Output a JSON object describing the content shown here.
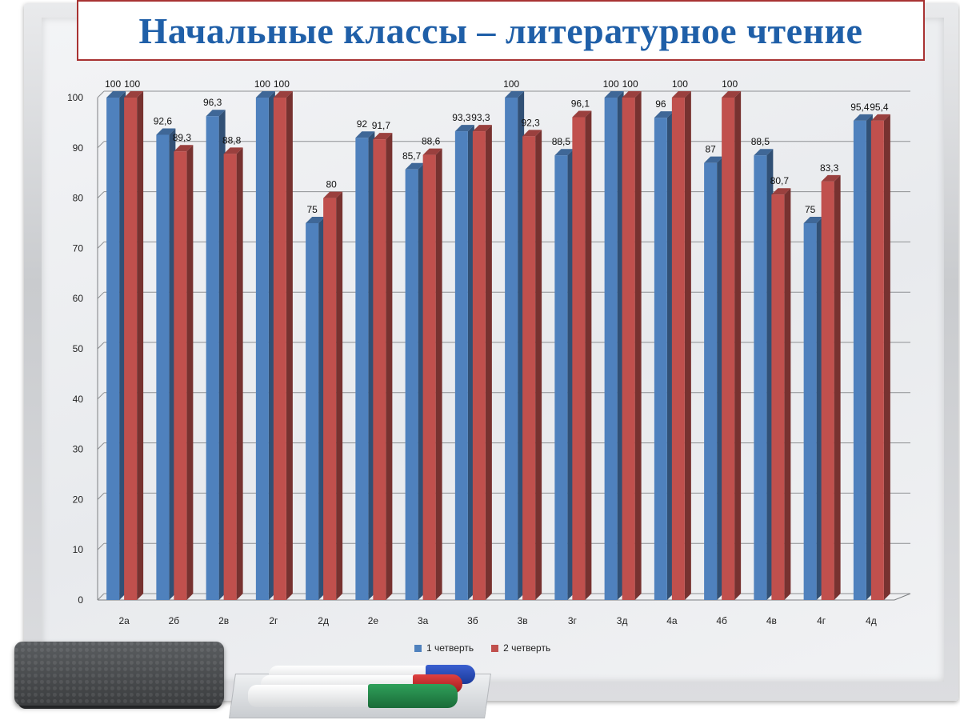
{
  "title": "Начальные классы – литературное чтение",
  "legend": {
    "series1": "1 четверть",
    "series2": "2 четверть"
  },
  "colors": {
    "series1": "#4f81bd",
    "series2": "#c0504d",
    "title": "#1f5fa8",
    "title_border": "#a83232"
  },
  "chart_data": {
    "type": "bar",
    "categories": [
      "2а",
      "2б",
      "2в",
      "2г",
      "2д",
      "2е",
      "3а",
      "3б",
      "3в",
      "3г",
      "3д",
      "4а",
      "4б",
      "4в",
      "4г",
      "4д"
    ],
    "series": [
      {
        "name": "1 четверть",
        "values": [
          100,
          92.6,
          96.3,
          100,
          75,
          92,
          85.7,
          93.3,
          100,
          88.5,
          100,
          96,
          87,
          88.5,
          75,
          95.4
        ]
      },
      {
        "name": "2 четверть",
        "values": [
          100,
          89.3,
          88.8,
          100,
          80,
          91.7,
          88.6,
          93.3,
          92.3,
          96.1,
          100,
          100,
          100,
          80.7,
          83.3,
          95.4
        ]
      }
    ],
    "data_labels": {
      "series1": [
        "100",
        "92,6",
        "96,3",
        "100",
        "75",
        "92",
        "85,7",
        "93,3",
        "100",
        "88,5",
        "100",
        "96",
        "87",
        "88,5",
        "75",
        "95,4"
      ],
      "series2": [
        "100",
        "89,3",
        "88,8",
        "100",
        "80",
        "91,7",
        "88,6",
        "93,3",
        "92,3",
        "96,1",
        "100",
        "100",
        "100",
        "80,7",
        "83,3",
        "95,4"
      ]
    },
    "ylim": [
      0,
      100
    ],
    "yticks": [
      0,
      10,
      20,
      30,
      40,
      50,
      60,
      70,
      80,
      90,
      100
    ],
    "grid": true,
    "legend_position": "bottom"
  }
}
